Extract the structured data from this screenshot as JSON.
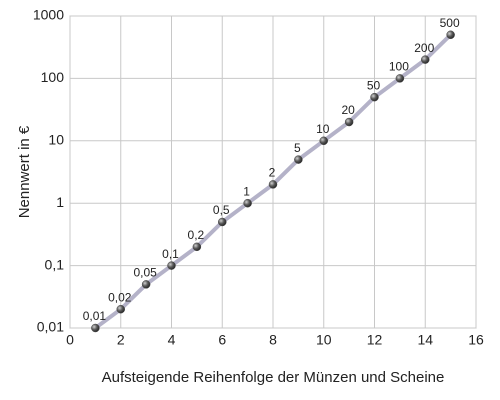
{
  "chart_data": {
    "type": "scatter",
    "x_label": "Aufsteigende Reihenfolge der Münzen und Scheine",
    "y_label": "Nennwert in €",
    "x": [
      1,
      2,
      3,
      4,
      5,
      6,
      7,
      8,
      9,
      10,
      11,
      12,
      13,
      14,
      15
    ],
    "values": [
      0.01,
      0.02,
      0.05,
      0.1,
      0.2,
      0.5,
      1,
      2,
      5,
      10,
      20,
      50,
      100,
      200,
      500
    ],
    "value_labels": [
      "0,01",
      "0,02",
      "0,05",
      "0,1",
      "0,2",
      "0,5",
      "1",
      "2",
      "5",
      "10",
      "20",
      "50",
      "100",
      "200",
      "500"
    ],
    "color": "#4a4a4a",
    "line_color": "#b4b2c8",
    "xlim": [
      0,
      16
    ],
    "xticks": [
      0,
      2,
      4,
      6,
      8,
      10,
      12,
      14,
      16
    ],
    "ylim": [
      0.01,
      1000
    ],
    "yticks": [
      {
        "value": 0.01,
        "label": "0,01"
      },
      {
        "value": 0.1,
        "label": "0,1"
      },
      1,
      10,
      100,
      1000
    ],
    "yscale": "log",
    "grid": true
  }
}
